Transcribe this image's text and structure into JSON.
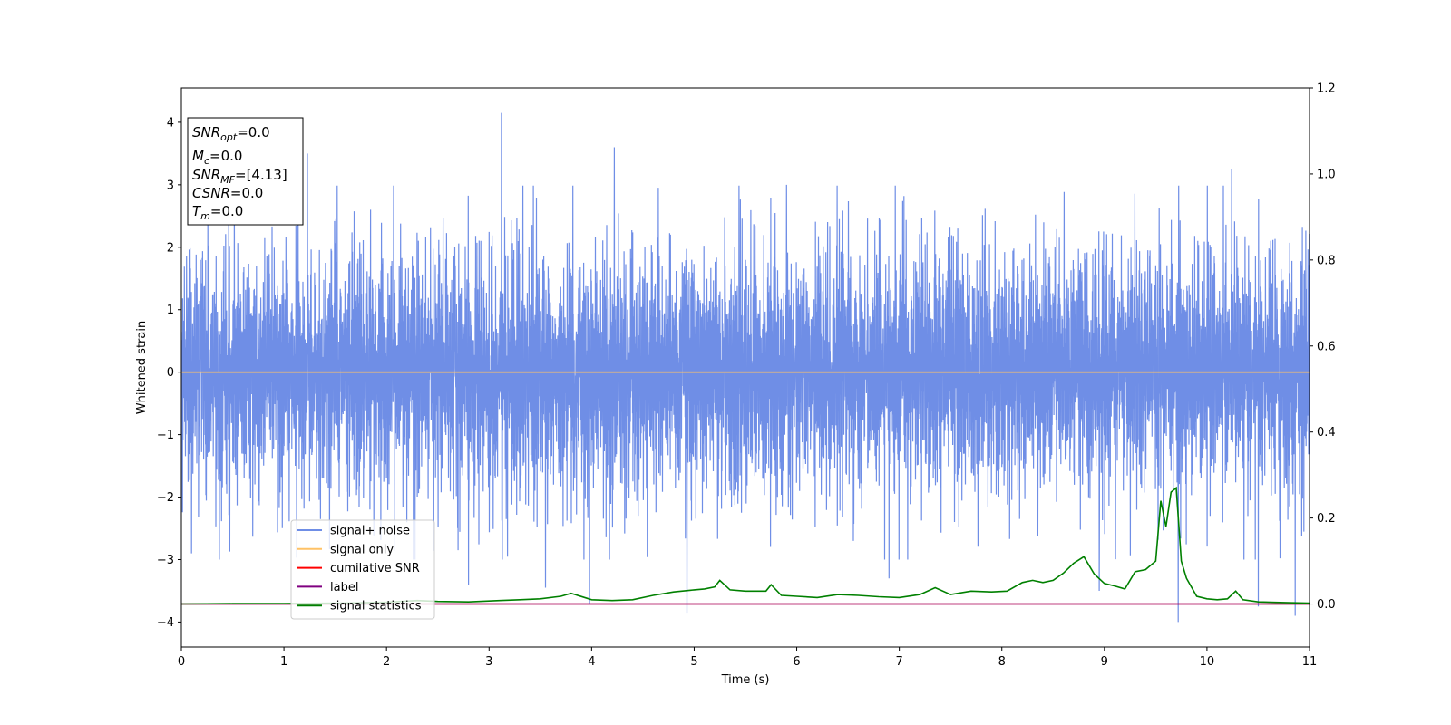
{
  "chart_data": {
    "type": "line",
    "title": "",
    "xlabel": "Time (s)",
    "ylabel": "Whitened strain",
    "y2label": "",
    "xlim": [
      0,
      11
    ],
    "ylim": [
      -4.4,
      4.55
    ],
    "y2lim": [
      -0.1,
      1.2
    ],
    "xticks": [
      0,
      1,
      2,
      3,
      4,
      5,
      6,
      7,
      8,
      9,
      10,
      11
    ],
    "yticks": [
      -4,
      -3,
      -2,
      -1,
      0,
      1,
      2,
      3,
      4
    ],
    "y2ticks": [
      0.0,
      0.2,
      0.4,
      0.6,
      0.8,
      1.0,
      1.2
    ],
    "grid": false,
    "legend_position": "lower-left",
    "info_box": {
      "lines": [
        {
          "base": "SNR",
          "sub": "opt",
          "value": "=0.0"
        },
        {
          "base": "M",
          "sub": "c",
          "value": "=0.0"
        },
        {
          "base": "SNR",
          "sub": "MF",
          "value": "=[4.13]"
        },
        {
          "base": "CSNR",
          "sub": "",
          "value": "=0.0"
        },
        {
          "base": "T",
          "sub": "m",
          "value": "=0.0"
        }
      ]
    },
    "series": [
      {
        "name": "signal+ noise",
        "color": "#6f8ee6",
        "axis": "left",
        "kind": "noise",
        "description_stats": {
          "typical_low": -1.8,
          "typical_high": 2.2,
          "max": 4.15,
          "min": -4.0
        },
        "spikes": [
          {
            "x": 3.12,
            "y": 4.15
          },
          {
            "x": 4.22,
            "y": 3.6
          },
          {
            "x": 1.23,
            "y": 3.5
          },
          {
            "x": 10.24,
            "y": 3.25
          },
          {
            "x": 5.9,
            "y": 3.0
          },
          {
            "x": 9.72,
            "y": -4.0
          },
          {
            "x": 10.86,
            "y": -3.9
          },
          {
            "x": 4.93,
            "y": -3.85
          },
          {
            "x": 10.5,
            "y": -3.75
          },
          {
            "x": 3.98,
            "y": -3.7
          },
          {
            "x": 6.9,
            "y": -3.3
          },
          {
            "x": 2.8,
            "y": -3.4
          },
          {
            "x": 8.95,
            "y": -3.5
          },
          {
            "x": 0.1,
            "y": -2.9
          },
          {
            "x": 3.55,
            "y": -3.45
          }
        ]
      },
      {
        "name": "signal only",
        "color": "#ffc266",
        "axis": "left",
        "x": [
          0,
          11
        ],
        "y": [
          0,
          0
        ]
      },
      {
        "name": "cumilative SNR",
        "color": "#ff0000",
        "axis": "right",
        "x": [
          0,
          11
        ],
        "y": [
          0,
          0
        ]
      },
      {
        "name": "label",
        "color": "#800080",
        "axis": "right",
        "x": [
          0,
          11
        ],
        "y": [
          0,
          0
        ]
      },
      {
        "name": "signal statistics",
        "color": "#008000",
        "axis": "right",
        "x": [
          0,
          0.5,
          1.0,
          1.5,
          2.0,
          2.3,
          2.5,
          2.8,
          3.1,
          3.3,
          3.5,
          3.7,
          3.8,
          4.0,
          4.2,
          4.4,
          4.6,
          4.8,
          5.0,
          5.1,
          5.2,
          5.25,
          5.35,
          5.5,
          5.7,
          5.75,
          5.85,
          6.0,
          6.2,
          6.4,
          6.6,
          6.8,
          7.0,
          7.2,
          7.35,
          7.5,
          7.7,
          7.9,
          8.05,
          8.2,
          8.3,
          8.4,
          8.5,
          8.6,
          8.7,
          8.8,
          8.9,
          9.0,
          9.1,
          9.2,
          9.3,
          9.4,
          9.5,
          9.55,
          9.6,
          9.65,
          9.7,
          9.75,
          9.8,
          9.9,
          10.0,
          10.1,
          10.2,
          10.28,
          10.35,
          10.5,
          10.8,
          11.0
        ],
        "y": [
          0.0,
          0.001,
          0.001,
          0.002,
          0.004,
          0.008,
          0.006,
          0.005,
          0.008,
          0.01,
          0.012,
          0.018,
          0.025,
          0.01,
          0.008,
          0.01,
          0.02,
          0.028,
          0.033,
          0.035,
          0.04,
          0.055,
          0.033,
          0.03,
          0.03,
          0.045,
          0.02,
          0.018,
          0.015,
          0.022,
          0.02,
          0.017,
          0.015,
          0.022,
          0.038,
          0.022,
          0.03,
          0.028,
          0.03,
          0.05,
          0.055,
          0.05,
          0.055,
          0.072,
          0.095,
          0.11,
          0.07,
          0.048,
          0.042,
          0.035,
          0.075,
          0.08,
          0.1,
          0.24,
          0.18,
          0.26,
          0.27,
          0.1,
          0.06,
          0.018,
          0.012,
          0.01,
          0.012,
          0.03,
          0.01,
          0.005,
          0.003,
          0.002
        ]
      }
    ]
  }
}
